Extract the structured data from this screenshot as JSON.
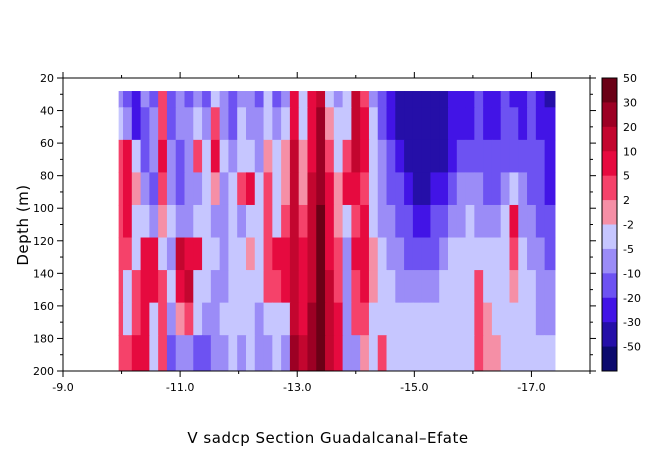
{
  "chart_data": {
    "type": "heatmap",
    "title": "V sadcp Section Guadalcanal–Efate",
    "ylabel": "Depth (m)",
    "xlabel": "",
    "xlim": [
      -9.0,
      -18.0
    ],
    "ylim": [
      200,
      20
    ],
    "x_ticks": [
      -9.0,
      -11.0,
      -13.0,
      -15.0,
      -17.0
    ],
    "x_tick_labels": [
      "-9.0",
      "-11.0",
      "-13.0",
      "-15.0",
      "-17.0"
    ],
    "y_ticks": [
      20,
      40,
      60,
      80,
      100,
      120,
      140,
      160,
      180,
      200
    ],
    "y_tick_labels": [
      "20",
      "40",
      "60",
      "80",
      "100",
      "120",
      "140",
      "160",
      "180",
      "200"
    ],
    "colorbar": {
      "labels": [
        "50",
        "30",
        "20",
        "10",
        "5",
        "2",
        "-2",
        "-5",
        "-10",
        "-20",
        "-30",
        "-50"
      ],
      "colors": [
        "#6b0016",
        "#9c0024",
        "#c3062f",
        "#e60a3f",
        "#f5426a",
        "#f58fa6",
        "#c6c6ff",
        "#9b8cf7",
        "#6d52f2",
        "#4214e6",
        "#250fa8",
        "#0c0a6e"
      ]
    },
    "data_extent": {
      "x": [
        -9.95,
        -17.4
      ],
      "depth": [
        28,
        200
      ]
    },
    "lat_columns": [
      -9.95,
      -10.1,
      -10.25,
      -10.4,
      -10.55,
      -10.7,
      -10.85,
      -11.0,
      -11.15,
      -11.3,
      -11.45,
      -11.6,
      -11.75,
      -11.9,
      -12.05,
      -12.2,
      -12.35,
      -12.5,
      -12.65,
      -12.8,
      -12.95,
      -13.1,
      -13.25,
      -13.4,
      -13.55,
      -13.7,
      -13.85,
      -14.0,
      -14.15,
      -14.3,
      -14.45,
      -14.6,
      -14.75,
      -14.9,
      -15.05,
      -15.2,
      -15.35,
      -15.5,
      -15.65,
      -15.8,
      -15.95,
      -16.1,
      -16.25,
      -16.4,
      -16.55,
      -16.7,
      -16.85,
      -17.0,
      -17.15,
      -17.3
    ],
    "depth_rows": [
      28,
      48,
      68,
      88,
      108,
      128,
      148,
      168,
      188
    ],
    "values": [
      [
        -6,
        -12,
        -22,
        -8,
        -15,
        3,
        -18,
        -8,
        -12,
        -6,
        -10,
        -3,
        -8,
        -14,
        -6,
        -8,
        -12,
        -4,
        -10,
        -6,
        8,
        -4,
        6,
        18,
        -2,
        -8,
        -4,
        12,
        4,
        -8,
        -18,
        -28,
        -32,
        -35,
        -40,
        -42,
        -38,
        -30,
        -25,
        -22,
        -20,
        -18,
        -22,
        -26,
        -16,
        -20,
        -24,
        -18,
        -26,
        -30
      ],
      [
        -4,
        -8,
        -20,
        -10,
        -6,
        4,
        -14,
        -6,
        -5,
        -4,
        -6,
        3,
        -6,
        -10,
        -4,
        -5,
        -8,
        -2,
        -6,
        -3,
        10,
        -2,
        8,
        22,
        2,
        -4,
        -2,
        14,
        6,
        -4,
        -10,
        -22,
        -30,
        -36,
        -44,
        -46,
        -40,
        -34,
        -28,
        -24,
        -22,
        -16,
        -20,
        -22,
        -14,
        -18,
        -20,
        -16,
        -22,
        -28
      ],
      [
        3,
        6,
        -4,
        -12,
        -8,
        6,
        -8,
        -10,
        -5,
        4,
        -4,
        6,
        -4,
        -8,
        -2,
        -3,
        -6,
        2,
        -4,
        -1,
        12,
        0,
        10,
        26,
        4,
        -2,
        4,
        16,
        8,
        -2,
        -6,
        -14,
        -22,
        -34,
        -46,
        -48,
        -40,
        -30,
        -24,
        -18,
        -14,
        -10,
        -12,
        -16,
        -10,
        -14,
        -16,
        -12,
        -18,
        -24
      ],
      [
        4,
        8,
        2,
        -8,
        -10,
        4,
        -6,
        -12,
        -6,
        -6,
        -3,
        2,
        -6,
        -4,
        4,
        6,
        -4,
        4,
        -2,
        2,
        14,
        2,
        12,
        28,
        6,
        0,
        6,
        10,
        4,
        -4,
        -8,
        -10,
        -16,
        -24,
        -36,
        -40,
        -28,
        -20,
        -10,
        -6,
        -6,
        -8,
        -10,
        -12,
        -6,
        -4,
        -8,
        -10,
        -14,
        -20
      ],
      [
        5,
        6,
        -2,
        -4,
        -8,
        2,
        -4,
        -6,
        -8,
        -4,
        -2,
        -6,
        -8,
        -2,
        -6,
        -4,
        -2,
        3,
        -4,
        4,
        16,
        4,
        14,
        32,
        8,
        2,
        -4,
        4,
        6,
        -2,
        -6,
        -8,
        -12,
        -16,
        -22,
        -24,
        -18,
        -12,
        -8,
        -6,
        -4,
        -6,
        -8,
        -6,
        -4,
        6,
        -6,
        -8,
        -10,
        -14
      ],
      [
        3,
        4,
        -2,
        8,
        6,
        -4,
        -6,
        12,
        10,
        8,
        -2,
        -4,
        -6,
        -2,
        -4,
        2,
        -2,
        4,
        8,
        6,
        18,
        6,
        16,
        34,
        10,
        3,
        -6,
        6,
        8,
        2,
        -4,
        -6,
        -8,
        -10,
        -14,
        -16,
        -10,
        -6,
        -4,
        -4,
        -3,
        -2,
        -4,
        -4,
        -2,
        4,
        -4,
        -6,
        -8,
        -10
      ],
      [
        3,
        -2,
        4,
        6,
        10,
        4,
        -2,
        8,
        12,
        -4,
        -2,
        -6,
        -8,
        -4,
        -2,
        -4,
        -2,
        3,
        4,
        6,
        20,
        8,
        18,
        36,
        12,
        4,
        -6,
        4,
        6,
        2,
        -4,
        -4,
        -6,
        -6,
        -8,
        -8,
        -6,
        -4,
        -3,
        -2,
        -2,
        4,
        -2,
        -3,
        -2,
        2,
        -2,
        -4,
        -6,
        -8
      ],
      [
        3,
        -2,
        4,
        8,
        -2,
        4,
        -8,
        2,
        4,
        -4,
        -8,
        -6,
        -4,
        -2,
        -4,
        -2,
        -6,
        -4,
        -2,
        -4,
        20,
        10,
        22,
        34,
        14,
        6,
        -6,
        4,
        4,
        -2,
        -4,
        -4,
        -3,
        -2,
        -4,
        -4,
        -3,
        -2,
        -2,
        -3,
        -2,
        3,
        2,
        -3,
        -2,
        -2,
        -2,
        -4,
        -6,
        -6
      ],
      [
        3,
        4,
        6,
        8,
        -4,
        4,
        -12,
        -6,
        -8,
        -14,
        -12,
        -8,
        -6,
        -4,
        -6,
        -4,
        -8,
        -6,
        -4,
        -6,
        22,
        12,
        26,
        32,
        16,
        8,
        -8,
        -6,
        2,
        -4,
        4,
        -3,
        -2,
        -2,
        -3,
        -2,
        -2,
        -2,
        -2,
        -2,
        -2,
        3,
        2,
        2,
        -2,
        -2,
        -2,
        -4,
        -4,
        -4
      ]
    ]
  }
}
